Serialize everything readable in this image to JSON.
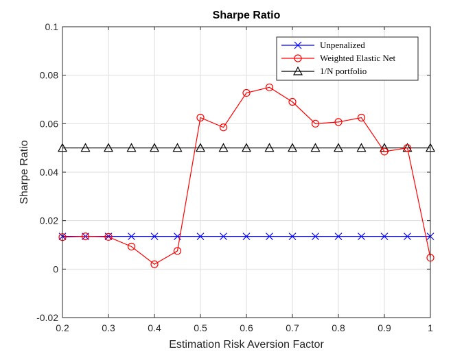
{
  "chart_data": {
    "type": "line",
    "title": "Sharpe Ratio",
    "xlabel": "Estimation Risk Aversion Factor",
    "ylabel": "Sharpe Ratio",
    "xlim": [
      0.2,
      1
    ],
    "ylim": [
      -0.02,
      0.1
    ],
    "xticks": [
      0.2,
      0.3,
      0.4,
      0.5,
      0.6,
      0.7,
      0.8,
      0.9,
      1
    ],
    "xtick_labels": [
      "0.2",
      "0.3",
      "0.4",
      "0.5",
      "0.6",
      "0.7",
      "0.8",
      "0.9",
      "1"
    ],
    "yticks": [
      -0.02,
      0,
      0.02,
      0.04,
      0.06,
      0.08,
      0.1
    ],
    "ytick_labels": [
      "-0.02",
      "0",
      "0.02",
      "0.04",
      "0.06",
      "0.08",
      "0.1"
    ],
    "grid": true,
    "legend_position": "top-right",
    "x": [
      0.2,
      0.25,
      0.3,
      0.35,
      0.4,
      0.45,
      0.5,
      0.55,
      0.6,
      0.65,
      0.7,
      0.75,
      0.8,
      0.85,
      0.9,
      0.95,
      1
    ],
    "series": [
      {
        "name": "Unpenalized",
        "color": "#0000ff",
        "marker": "x",
        "values": [
          0.0135,
          0.0135,
          0.0135,
          0.0135,
          0.0135,
          0.0135,
          0.0135,
          0.0135,
          0.0135,
          0.0135,
          0.0135,
          0.0135,
          0.0135,
          0.0135,
          0.0135,
          0.0135,
          0.0135
        ]
      },
      {
        "name": "Weighted Elastic Net",
        "color": "#ff0000",
        "marker": "circle",
        "values": [
          0.0132,
          0.0135,
          0.0133,
          0.0093,
          0.002,
          0.0075,
          0.0625,
          0.0585,
          0.0727,
          0.075,
          0.069,
          0.06,
          0.0607,
          0.0625,
          0.0485,
          0.05,
          0.0047
        ]
      },
      {
        "name": "1/N portfolio",
        "color": "#000000",
        "marker": "triangle",
        "values": [
          0.05,
          0.05,
          0.05,
          0.05,
          0.05,
          0.05,
          0.05,
          0.05,
          0.05,
          0.05,
          0.05,
          0.05,
          0.05,
          0.05,
          0.05,
          0.05,
          0.05
        ]
      }
    ]
  }
}
